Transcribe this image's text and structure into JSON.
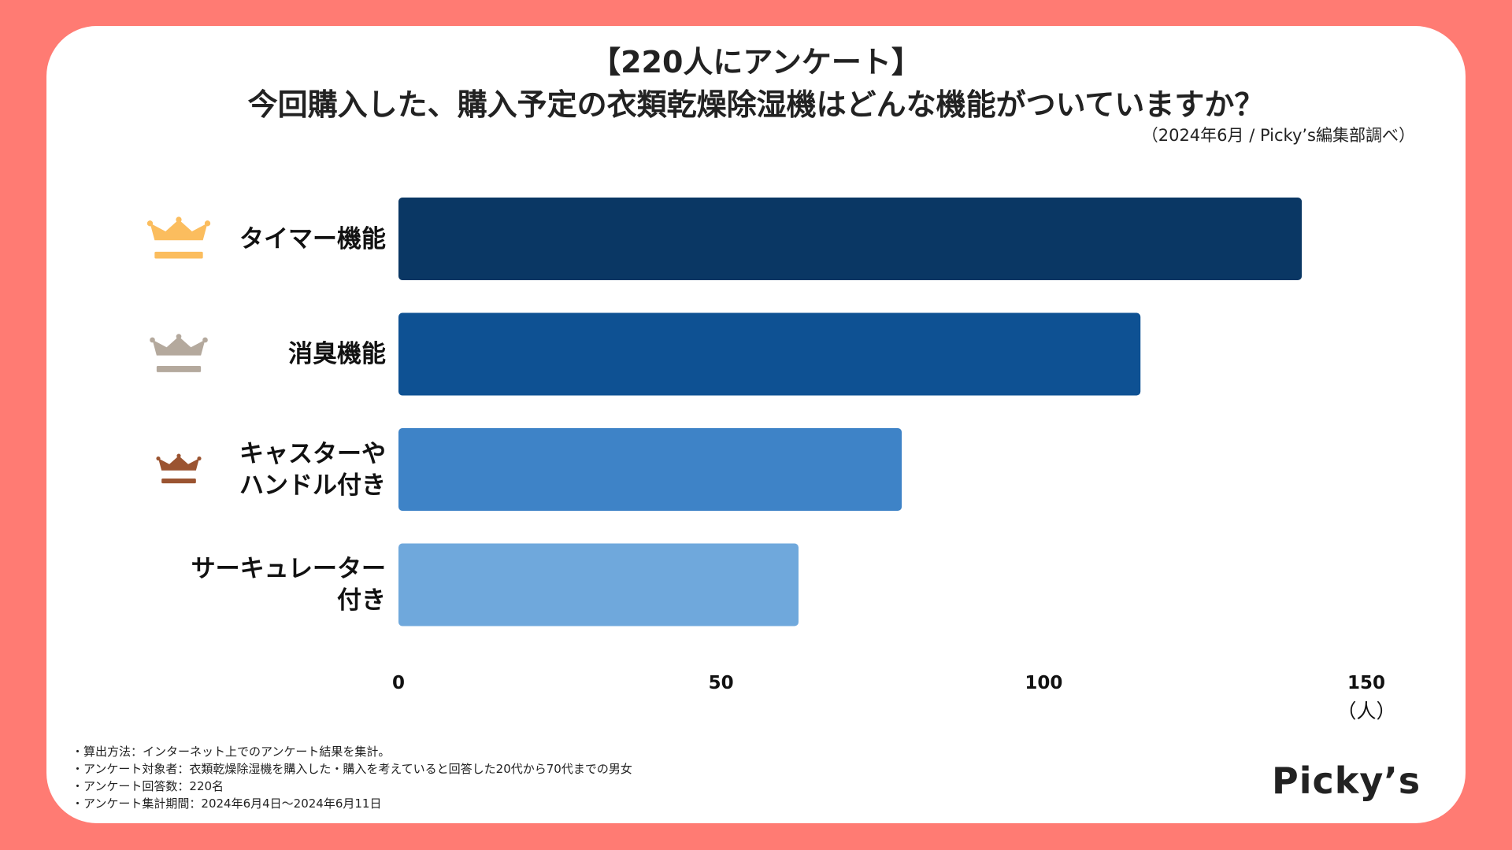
{
  "header": {
    "title_line1": "【220人にアンケート】",
    "title_line2": "今回購入した、購入予定の衣類乾燥除湿機はどんな機能がついていますか？",
    "source": "（2024年6月 / Picky’s編集部調べ）"
  },
  "chart_data": {
    "type": "bar",
    "orientation": "horizontal",
    "title": "今回購入した、購入予定の衣類乾燥除湿機はどんな機能がついていますか？",
    "categories": [
      "タイマー機能",
      "消臭機能",
      "キャスターや\nハンドル付き",
      "サーキュレーター\n付き"
    ],
    "values": [
      140,
      115,
      78,
      62
    ],
    "xlim": [
      0,
      150
    ],
    "xticks": [
      "0",
      "50",
      "100",
      "150"
    ],
    "xlabel": "（人）",
    "bar_colors": [
      "#0a3764",
      "#0e5193",
      "#3e83c7",
      "#6fa8dc"
    ],
    "crowns": [
      {
        "rank": 1,
        "icon": "gold-crown-icon",
        "color": "#fbbd5e"
      },
      {
        "rank": 2,
        "icon": "silver-crown-icon",
        "color": "#b4a99d"
      },
      {
        "rank": 3,
        "icon": "bronze-crown-icon",
        "color": "#9b5431"
      },
      {
        "rank": 4,
        "icon": "",
        "color": ""
      }
    ],
    "grid": false,
    "legend": "none"
  },
  "notes": [
    "・算出方法：インターネット上でのアンケート結果を集計。",
    "・アンケート対象者：衣類乾燥除湿機を購入した・購入を考えていると回答した20代から70代までの男女",
    "・アンケート回答数：220名",
    "・アンケート集計期間：2024年6月4日〜2024年6月11日"
  ],
  "brand": {
    "logo_text": "Picky’s",
    "background_color": "#ff7b73"
  }
}
